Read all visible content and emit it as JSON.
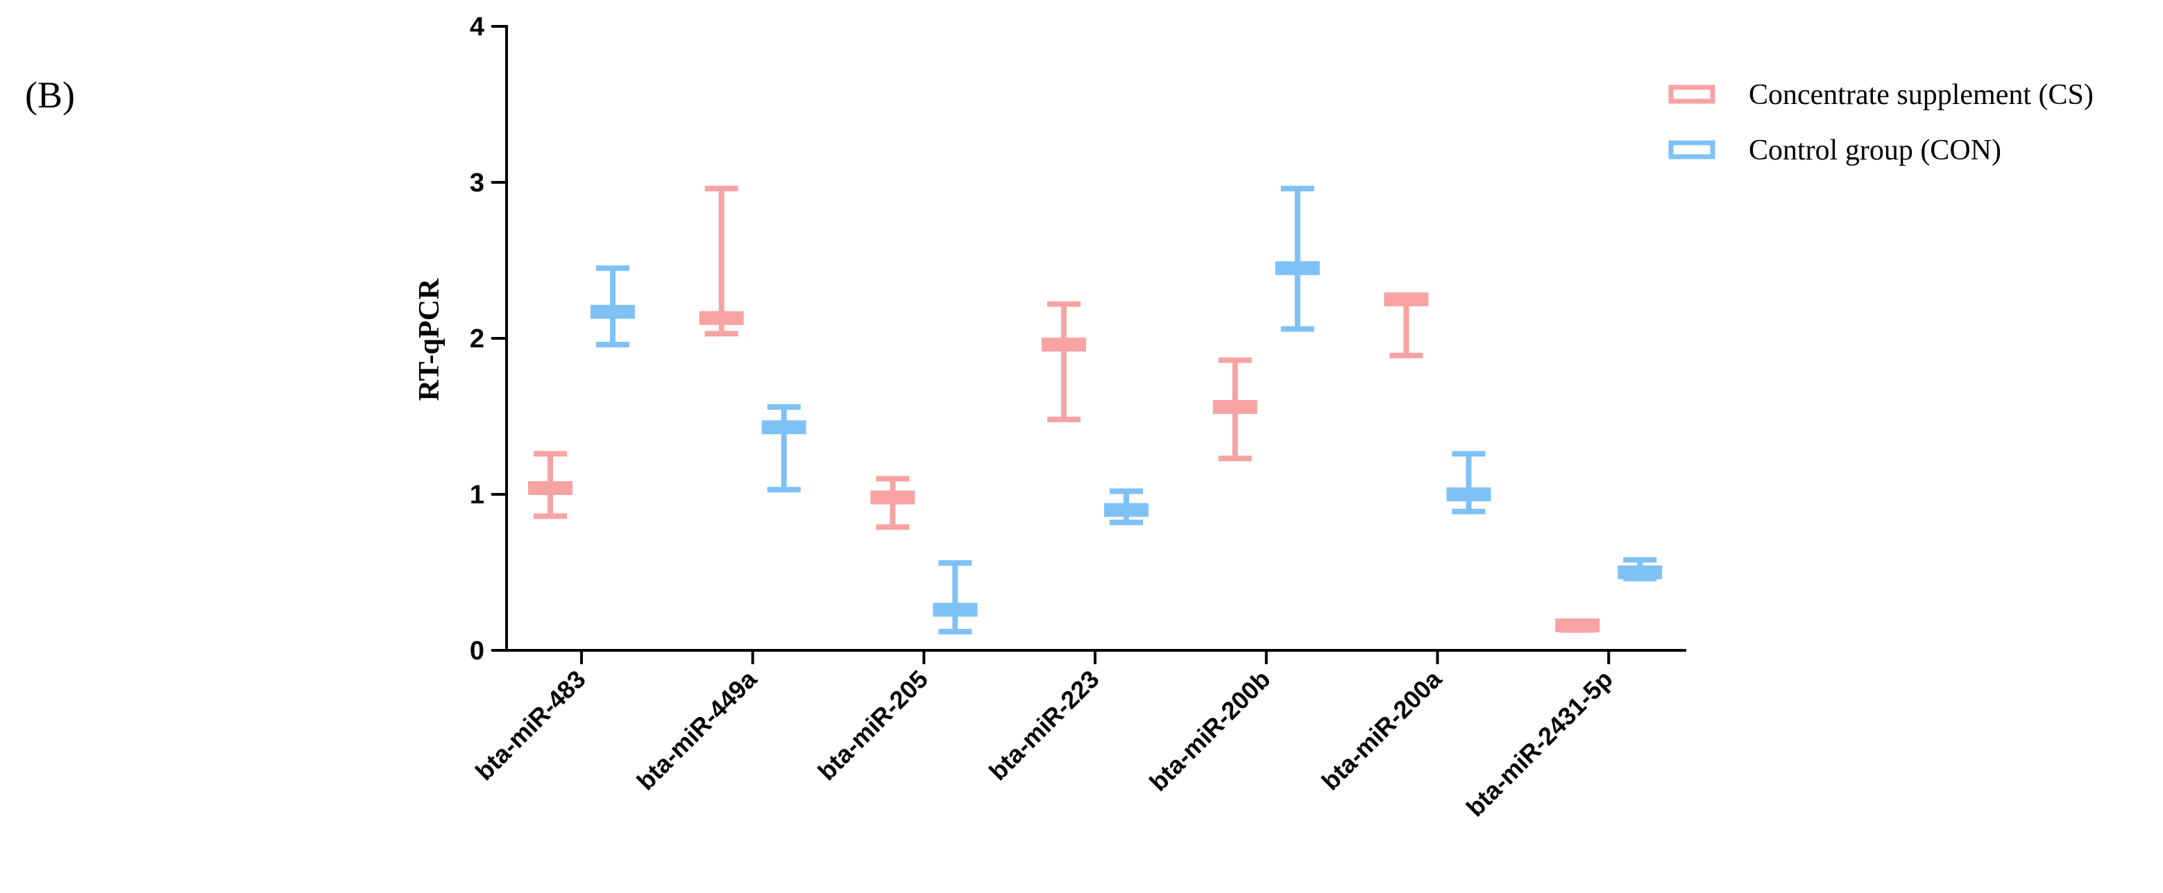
{
  "chart_data": {
    "type": "floating-range",
    "panel_label": "(B)",
    "y_label": "RT-qPCR",
    "categories": [
      "bta-miR-483",
      "bta-miR-449a",
      "bta-miR-205",
      "bta-miR-223",
      "bta-miR-200b",
      "bta-miR-200a",
      "bta-miR-2431-5p"
    ],
    "series": [
      {
        "name": "Concentrate supplement (CS)",
        "color": "#f7a3a3",
        "values": [
          1.04,
          2.13,
          0.98,
          1.96,
          1.56,
          2.25,
          0.16
        ],
        "low": [
          0.86,
          2.03,
          0.79,
          1.48,
          1.23,
          1.89,
          0.13
        ],
        "high": [
          1.26,
          2.96,
          1.1,
          2.22,
          1.86,
          2.26,
          0.17
        ]
      },
      {
        "name": "Control group (CON)",
        "color": "#7fc1f5",
        "values": [
          2.17,
          1.43,
          0.26,
          0.9,
          2.45,
          1.0,
          0.5
        ],
        "low": [
          1.96,
          1.03,
          0.12,
          0.82,
          2.06,
          0.89,
          0.46
        ],
        "high": [
          2.45,
          1.56,
          0.56,
          1.02,
          2.96,
          1.26,
          0.58
        ]
      }
    ],
    "ylim": [
      0,
      4
    ],
    "yticks": [
      0,
      1,
      2,
      3,
      4
    ],
    "legend": "upper right"
  }
}
